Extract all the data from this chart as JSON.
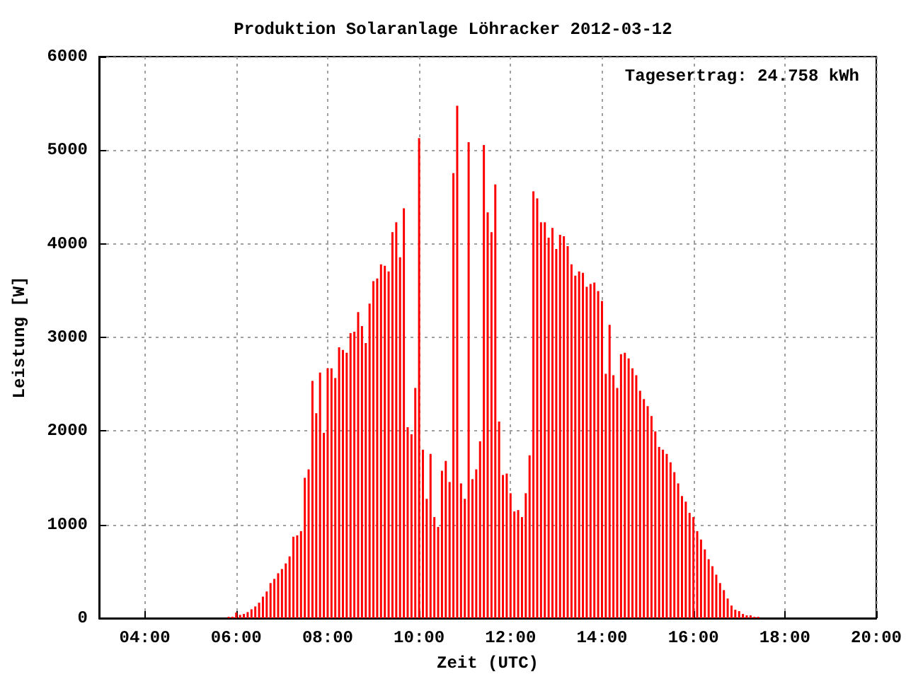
{
  "chart_data": {
    "type": "bar",
    "title": "Produktion Solaranlage Löhracker 2012-03-12",
    "xlabel": "Zeit (UTC)",
    "ylabel": "Leistung [W]",
    "annotations": [
      "Tagesertrag: 24.758 kWh"
    ],
    "x": [
      "2012-03-12T05:50",
      "2012-03-12T05:55",
      "2012-03-12T06:00",
      "2012-03-12T06:05",
      "2012-03-12T06:10",
      "2012-03-12T06:15",
      "2012-03-12T06:20",
      "2012-03-12T06:25",
      "2012-03-12T06:30",
      "2012-03-12T06:35",
      "2012-03-12T06:40",
      "2012-03-12T06:45",
      "2012-03-12T06:50",
      "2012-03-12T06:55",
      "2012-03-12T07:00",
      "2012-03-12T07:05",
      "2012-03-12T07:10",
      "2012-03-12T07:15",
      "2012-03-12T07:20",
      "2012-03-12T07:25",
      "2012-03-12T07:30",
      "2012-03-12T07:35",
      "2012-03-12T07:40",
      "2012-03-12T07:45",
      "2012-03-12T07:50",
      "2012-03-12T07:55",
      "2012-03-12T08:00",
      "2012-03-12T08:05",
      "2012-03-12T08:10",
      "2012-03-12T08:15",
      "2012-03-12T08:20",
      "2012-03-12T08:25",
      "2012-03-12T08:30",
      "2012-03-12T08:35",
      "2012-03-12T08:40",
      "2012-03-12T08:45",
      "2012-03-12T08:50",
      "2012-03-12T08:55",
      "2012-03-12T09:00",
      "2012-03-12T09:05",
      "2012-03-12T09:10",
      "2012-03-12T09:15",
      "2012-03-12T09:20",
      "2012-03-12T09:25",
      "2012-03-12T09:30",
      "2012-03-12T09:35",
      "2012-03-12T09:40",
      "2012-03-12T09:45",
      "2012-03-12T09:50",
      "2012-03-12T09:55",
      "2012-03-12T10:00",
      "2012-03-12T10:05",
      "2012-03-12T10:10",
      "2012-03-12T10:15",
      "2012-03-12T10:20",
      "2012-03-12T10:25",
      "2012-03-12T10:30",
      "2012-03-12T10:35",
      "2012-03-12T10:40",
      "2012-03-12T10:45",
      "2012-03-12T10:50",
      "2012-03-12T10:55",
      "2012-03-12T11:00",
      "2012-03-12T11:05",
      "2012-03-12T11:10",
      "2012-03-12T11:15",
      "2012-03-12T11:20",
      "2012-03-12T11:25",
      "2012-03-12T11:30",
      "2012-03-12T11:35",
      "2012-03-12T11:40",
      "2012-03-12T11:45",
      "2012-03-12T11:50",
      "2012-03-12T11:55",
      "2012-03-12T12:00",
      "2012-03-12T12:05",
      "2012-03-12T12:10",
      "2012-03-12T12:15",
      "2012-03-12T12:20",
      "2012-03-12T12:25",
      "2012-03-12T12:30",
      "2012-03-12T12:35",
      "2012-03-12T12:40",
      "2012-03-12T12:45",
      "2012-03-12T12:50",
      "2012-03-12T12:55",
      "2012-03-12T13:00",
      "2012-03-12T13:05",
      "2012-03-12T13:10",
      "2012-03-12T13:15",
      "2012-03-12T13:20",
      "2012-03-12T13:25",
      "2012-03-12T13:30",
      "2012-03-12T13:35",
      "2012-03-12T13:40",
      "2012-03-12T13:45",
      "2012-03-12T13:50",
      "2012-03-12T13:55",
      "2012-03-12T14:00",
      "2012-03-12T14:05",
      "2012-03-12T14:10",
      "2012-03-12T14:15",
      "2012-03-12T14:20",
      "2012-03-12T14:25",
      "2012-03-12T14:30",
      "2012-03-12T14:35",
      "2012-03-12T14:40",
      "2012-03-12T14:45",
      "2012-03-12T14:50",
      "2012-03-12T14:55",
      "2012-03-12T15:00",
      "2012-03-12T15:05",
      "2012-03-12T15:10",
      "2012-03-12T15:15",
      "2012-03-12T15:20",
      "2012-03-12T15:25",
      "2012-03-12T15:30",
      "2012-03-12T15:35",
      "2012-03-12T15:40",
      "2012-03-12T15:45",
      "2012-03-12T15:50",
      "2012-03-12T15:55",
      "2012-03-12T16:00",
      "2012-03-12T16:05",
      "2012-03-12T16:10",
      "2012-03-12T16:15",
      "2012-03-12T16:20",
      "2012-03-12T16:25",
      "2012-03-12T16:30",
      "2012-03-12T16:35",
      "2012-03-12T16:40",
      "2012-03-12T16:45",
      "2012-03-12T16:50",
      "2012-03-12T16:55",
      "2012-03-12T17:00",
      "2012-03-12T17:05",
      "2012-03-12T17:10",
      "2012-03-12T17:15",
      "2012-03-12T17:20",
      "2012-03-12T17:25"
    ],
    "series": [
      {
        "color": "#ff0000",
        "values": [
          15,
          15,
          60,
          35,
          45,
          65,
          95,
          125,
          165,
          230,
          285,
          375,
          420,
          480,
          525,
          585,
          660,
          870,
          885,
          930,
          1500,
          1590,
          2535,
          2190,
          2625,
          1980,
          2670,
          2670,
          2565,
          2895,
          2865,
          2835,
          3045,
          3060,
          3270,
          3120,
          2940,
          3360,
          3600,
          3630,
          3780,
          3765,
          3705,
          4125,
          4230,
          3855,
          4380,
          2040,
          1965,
          2460,
          5130,
          1800,
          1275,
          1755,
          1080,
          975,
          1575,
          1680,
          1455,
          4755,
          5475,
          1440,
          1275,
          5085,
          1485,
          1590,
          1890,
          5055,
          4335,
          4125,
          4635,
          2100,
          1530,
          1545,
          1335,
          1140,
          1155,
          1080,
          1335,
          1740,
          4560,
          4485,
          4230,
          4230,
          4065,
          4170,
          3945,
          4095,
          4080,
          3975,
          3780,
          3660,
          3705,
          3690,
          3540,
          3570,
          3585,
          3495,
          3390,
          2610,
          3135,
          2595,
          2460,
          2820,
          2835,
          2775,
          2670,
          2595,
          2430,
          2340,
          2265,
          2160,
          1995,
          1830,
          1800,
          1755,
          1665,
          1560,
          1440,
          1305,
          1245,
          1125,
          1080,
          930,
          840,
          735,
          630,
          555,
          465,
          375,
          300,
          210,
          135,
          90,
          75,
          45,
          30,
          30,
          15,
          15
        ]
      }
    ],
    "xlim": [
      "2012-03-12T03:00",
      "2012-03-12T20:00"
    ],
    "xticks": [
      {
        "value": "2012-03-12T04:00",
        "label": "04:00"
      },
      {
        "value": "2012-03-12T06:00",
        "label": "06:00"
      },
      {
        "value": "2012-03-12T08:00",
        "label": "08:00"
      },
      {
        "value": "2012-03-12T10:00",
        "label": "10:00"
      },
      {
        "value": "2012-03-12T12:00",
        "label": "12:00"
      },
      {
        "value": "2012-03-12T14:00",
        "label": "14:00"
      },
      {
        "value": "2012-03-12T16:00",
        "label": "16:00"
      },
      {
        "value": "2012-03-12T18:00",
        "label": "18:00"
      },
      {
        "value": "2012-03-12T20:00",
        "label": "20:00"
      }
    ],
    "ylim": [
      0,
      6000
    ],
    "yticks": [
      0,
      1000,
      2000,
      3000,
      4000,
      5000,
      6000
    ],
    "grid": true
  }
}
